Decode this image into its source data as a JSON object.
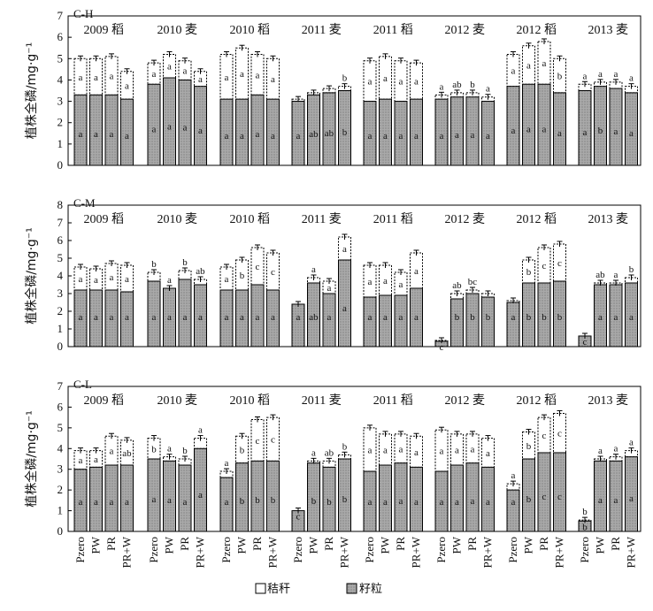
{
  "legend": {
    "straw_label": "秸秆",
    "grain_label": "籽粒"
  },
  "chart_data": {
    "type": "bar",
    "stacked": true,
    "categories": [
      "Pzero",
      "PW",
      "PR",
      "PR+W"
    ],
    "ylabel": "植株全磷/mg·g⁻¹",
    "colors": {
      "grain": "#a6a6a6",
      "straw": "#ffffff",
      "edge": "#000000"
    },
    "stack_order": [
      "grain",
      "straw"
    ],
    "panels": [
      {
        "title": "C-H",
        "ylim": [
          0,
          7
        ],
        "yticks": [
          0,
          1,
          2,
          3,
          4,
          5,
          6,
          7
        ],
        "seasons": [
          {
            "label": "2009 稻",
            "grain": [
              3.3,
              3.3,
              3.3,
              3.1
            ],
            "total": [
              5.0,
              5.0,
              5.1,
              4.4
            ],
            "grain_letters": [
              "a",
              "a",
              "a",
              "a"
            ],
            "straw_letters": [
              "a",
              "a",
              "a",
              "a"
            ]
          },
          {
            "label": "2010 麦",
            "grain": [
              3.8,
              4.1,
              4.0,
              3.7
            ],
            "total": [
              4.8,
              5.2,
              4.9,
              4.4
            ],
            "grain_letters": [
              "a",
              "a",
              "a",
              "a"
            ],
            "straw_letters": [
              "a",
              "a",
              "a",
              "a"
            ]
          },
          {
            "label": "2010 稻",
            "grain": [
              3.1,
              3.1,
              3.3,
              3.1
            ],
            "total": [
              5.2,
              5.5,
              5.2,
              5.0
            ],
            "grain_letters": [
              "a",
              "a",
              "a",
              "a"
            ],
            "straw_letters": [
              "a",
              "a",
              "a",
              "a"
            ]
          },
          {
            "label": "2011 麦",
            "grain": [
              3.0,
              3.3,
              3.4,
              3.5
            ],
            "total": [
              3.1,
              3.4,
              3.6,
              3.7
            ],
            "grain_letters": [
              "a",
              "ab",
              "ab",
              "b"
            ],
            "straw_letters": [
              "",
              "",
              "",
              "b"
            ]
          },
          {
            "label": "2011 稻",
            "grain": [
              3.0,
              3.1,
              3.0,
              3.1
            ],
            "total": [
              4.9,
              5.1,
              4.9,
              4.8
            ],
            "grain_letters": [
              "a",
              "a",
              "a",
              "a"
            ],
            "straw_letters": [
              "a",
              "a",
              "a",
              "a"
            ]
          },
          {
            "label": "2012 麦",
            "grain": [
              3.1,
              3.2,
              3.2,
              3.0
            ],
            "total": [
              3.3,
              3.4,
              3.4,
              3.2
            ],
            "grain_letters": [
              "a",
              "a",
              "a",
              "a"
            ],
            "straw_letters": [
              "a",
              "ab",
              "b",
              "a"
            ]
          },
          {
            "label": "2012 稻",
            "grain": [
              3.7,
              3.8,
              3.8,
              3.4
            ],
            "total": [
              5.2,
              5.6,
              5.8,
              5.0
            ],
            "grain_letters": [
              "a",
              "a",
              "a",
              "a"
            ],
            "straw_letters": [
              "a",
              "a",
              "a",
              "b"
            ]
          },
          {
            "label": "2013 麦",
            "grain": [
              3.5,
              3.7,
              3.6,
              3.4
            ],
            "total": [
              3.8,
              3.9,
              3.9,
              3.7
            ],
            "grain_letters": [
              "a",
              "b",
              "a",
              "a"
            ],
            "straw_letters": [
              "a",
              "a",
              "a",
              "a"
            ]
          }
        ]
      },
      {
        "title": "C-M",
        "ylim": [
          0,
          8
        ],
        "yticks": [
          0,
          1,
          2,
          3,
          4,
          5,
          6,
          7,
          8
        ],
        "seasons": [
          {
            "label": "2009 稻",
            "grain": [
              3.2,
              3.2,
              3.2,
              3.1
            ],
            "total": [
              4.5,
              4.4,
              4.7,
              4.6
            ],
            "grain_letters": [
              "a",
              "a",
              "a",
              "a"
            ],
            "straw_letters": [
              "a",
              "a",
              "a",
              "a"
            ]
          },
          {
            "label": "2010 麦",
            "grain": [
              3.7,
              3.3,
              3.8,
              3.5
            ],
            "total": [
              4.2,
              3.3,
              4.3,
              3.8
            ],
            "grain_letters": [
              "a",
              "a",
              "a",
              "a"
            ],
            "straw_letters": [
              "b",
              "a",
              "b",
              "ab"
            ]
          },
          {
            "label": "2010 稻",
            "grain": [
              3.2,
              3.2,
              3.5,
              3.2
            ],
            "total": [
              4.5,
              4.9,
              5.6,
              5.3
            ],
            "grain_letters": [
              "a",
              "a",
              "a",
              "a"
            ],
            "straw_letters": [
              "a",
              "b",
              "c",
              "c"
            ]
          },
          {
            "label": "2011 麦",
            "grain": [
              2.4,
              3.6,
              3.0,
              4.9
            ],
            "total": [
              2.4,
              3.9,
              3.7,
              6.2
            ],
            "grain_letters": [
              "a",
              "ab",
              "a",
              "a"
            ],
            "straw_letters": [
              "",
              "a",
              "a",
              "a"
            ]
          },
          {
            "label": "2011 稻",
            "grain": [
              2.8,
              2.9,
              2.9,
              3.3
            ],
            "total": [
              4.6,
              4.6,
              4.2,
              5.3
            ],
            "grain_letters": [
              "a",
              "a",
              "a",
              "a"
            ],
            "straw_letters": [
              "a",
              "a",
              "a",
              "a"
            ]
          },
          {
            "label": "2012 麦",
            "grain": [
              0.3,
              2.7,
              3.0,
              2.8
            ],
            "total": [
              0.35,
              3.0,
              3.2,
              3.0
            ],
            "grain_letters": [
              "c",
              "b",
              "b",
              "b"
            ],
            "straw_letters": [
              "",
              "ab",
              "bc",
              ""
            ]
          },
          {
            "label": "2012 稻",
            "grain": [
              2.5,
              3.6,
              3.6,
              3.7
            ],
            "total": [
              2.6,
              4.9,
              5.6,
              5.8
            ],
            "grain_letters": [
              "a",
              "b",
              "b",
              "b"
            ],
            "straw_letters": [
              "",
              "b",
              "c",
              "c"
            ]
          },
          {
            "label": "2013 麦",
            "grain": [
              0.6,
              3.5,
              3.5,
              3.6
            ],
            "total": [
              0.6,
              3.6,
              3.6,
              3.9
            ],
            "grain_letters": [
              "c",
              "a",
              "a",
              "a"
            ],
            "straw_letters": [
              "",
              "ab",
              "a",
              "b"
            ]
          }
        ]
      },
      {
        "title": "C-L",
        "ylim": [
          0,
          7
        ],
        "yticks": [
          0,
          1,
          2,
          3,
          4,
          5,
          6,
          7
        ],
        "seasons": [
          {
            "label": "2009 稻",
            "grain": [
              3.0,
              3.1,
              3.2,
              3.2
            ],
            "total": [
              3.9,
              3.9,
              4.6,
              4.4
            ],
            "grain_letters": [
              "a",
              "a",
              "a",
              "a"
            ],
            "straw_letters": [
              "a",
              "a",
              "a",
              "ab"
            ]
          },
          {
            "label": "2010 麦",
            "grain": [
              3.5,
              3.4,
              3.2,
              4.0
            ],
            "total": [
              4.5,
              3.6,
              3.5,
              4.5
            ],
            "grain_letters": [
              "a",
              "a",
              "a",
              "a"
            ],
            "straw_letters": [
              "b",
              "a",
              "b",
              "a"
            ]
          },
          {
            "label": "2010 稻",
            "grain": [
              2.6,
              3.3,
              3.4,
              3.4
            ],
            "total": [
              2.9,
              4.6,
              5.4,
              5.5
            ],
            "grain_letters": [
              "a",
              "b",
              "b",
              "b"
            ],
            "straw_letters": [
              "a",
              "b",
              "c",
              "c"
            ]
          },
          {
            "label": "2011 麦",
            "grain": [
              1.0,
              3.3,
              3.1,
              3.5
            ],
            "total": [
              1.0,
              3.4,
              3.4,
              3.7
            ],
            "grain_letters": [
              "c",
              "b",
              "b",
              "b"
            ],
            "straw_letters": [
              "",
              "a",
              "ab",
              "b"
            ]
          },
          {
            "label": "2011 稻",
            "grain": [
              2.9,
              3.2,
              3.3,
              3.1
            ],
            "total": [
              5.0,
              4.7,
              4.7,
              4.6
            ],
            "grain_letters": [
              "a",
              "a",
              "a",
              "a"
            ],
            "straw_letters": [
              "a",
              "a",
              "a",
              "a"
            ]
          },
          {
            "label": "2012 麦",
            "grain": [
              2.9,
              3.2,
              3.3,
              3.1
            ],
            "total": [
              4.9,
              4.7,
              4.7,
              4.5
            ],
            "grain_letters": [
              "a",
              "a",
              "a",
              "a"
            ],
            "straw_letters": [
              "a",
              "a",
              "a",
              "a"
            ]
          },
          {
            "label": "2012 稻",
            "grain": [
              2.0,
              3.5,
              3.8,
              3.8
            ],
            "total": [
              2.3,
              4.8,
              5.5,
              5.7
            ],
            "grain_letters": [
              "a",
              "b",
              "c",
              "c"
            ],
            "straw_letters": [
              "a",
              "b",
              "c",
              "c"
            ]
          },
          {
            "label": "2013 麦",
            "grain": [
              0.5,
              3.4,
              3.4,
              3.6
            ],
            "total": [
              0.55,
              3.5,
              3.6,
              3.9
            ],
            "grain_letters": [
              "b",
              "a",
              "a",
              "a"
            ],
            "straw_letters": [
              "b",
              "a",
              "a",
              "a"
            ]
          }
        ]
      }
    ]
  }
}
